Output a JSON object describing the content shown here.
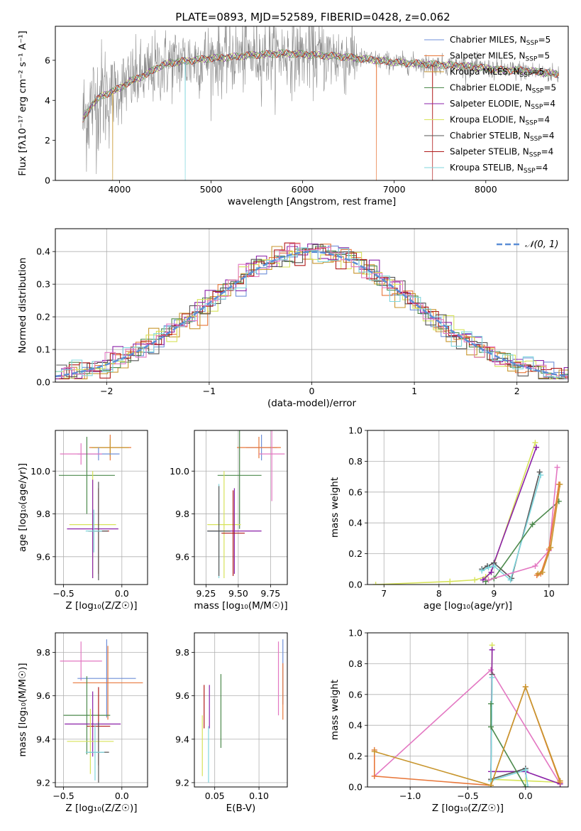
{
  "title": "PLATE=0893, MJD=52589, FIBERID=0428, z=0.062",
  "colors": {
    "Chabrier MILES": "#6f8fd8",
    "Salpeter MILES": "#e8773a",
    "Kroupa MILES": "#c8962e",
    "Chabrier ELODIE": "#4d8a4d",
    "Salpeter ELODIE": "#8b21a8",
    "Kroupa ELODIE": "#d7e35a",
    "Chabrier STELIB": "#555555",
    "Salpeter STELIB": "#b01a1a",
    "Kroupa STELIB": "#7fd6dd",
    "data": "#8c8c8c",
    "gauss": "#5b8ed6",
    "grid": "#b0b0b0",
    "pink": "#e377c2"
  },
  "chart_data": [
    {
      "id": "spectrum",
      "type": "line",
      "xlabel": "wavelength [Angstrom, rest frame]",
      "ylabel": "Flux [fλ10⁻¹⁷ erg cm⁻² s⁻¹ A⁻¹]",
      "xlim": [
        3300,
        8900
      ],
      "ylim": [
        0,
        7.7
      ],
      "xticks": [
        4000,
        5000,
        6000,
        7000,
        8000
      ],
      "yticks": [
        0,
        2,
        4,
        6
      ],
      "grid": false,
      "legend_position": "right",
      "continuum": {
        "x": [
          3600,
          3700,
          3800,
          3900,
          4000,
          4100,
          4200,
          4300,
          4400,
          4500,
          4600,
          4800,
          5000,
          5200,
          5400,
          5600,
          5800,
          6000,
          6200,
          6400,
          6600,
          6800,
          7000,
          7200,
          7400,
          7600,
          7800,
          8000,
          8200,
          8400,
          8600,
          8800
        ],
        "y": [
          3.0,
          3.8,
          4.2,
          4.4,
          4.6,
          4.9,
          5.1,
          5.3,
          5.6,
          5.8,
          5.9,
          6.0,
          6.1,
          6.15,
          6.25,
          6.3,
          6.35,
          6.3,
          6.25,
          6.2,
          6.1,
          6.0,
          5.9,
          5.85,
          5.8,
          5.75,
          5.7,
          5.6,
          5.5,
          5.5,
          5.4,
          5.3
        ]
      },
      "series": [
        {
          "name": "Chabrier MILES",
          "nssp": "5",
          "color_key": "Chabrier MILES"
        },
        {
          "name": "Salpeter MILES",
          "nssp": "5",
          "color_key": "Salpeter MILES"
        },
        {
          "name": "Kroupa MILES",
          "nssp": "5",
          "color_key": "Kroupa MILES"
        },
        {
          "name": "Chabrier ELODIE",
          "nssp": "5",
          "color_key": "Chabrier ELODIE"
        },
        {
          "name": "Salpeter ELODIE",
          "nssp": "4",
          "color_key": "Salpeter ELODIE"
        },
        {
          "name": "Kroupa ELODIE",
          "nssp": "4",
          "color_key": "Kroupa ELODIE"
        },
        {
          "name": "Chabrier STELIB",
          "nssp": "4",
          "color_key": "Chabrier STELIB"
        },
        {
          "name": "Salpeter STELIB",
          "nssp": "4",
          "color_key": "Salpeter STELIB"
        },
        {
          "name": "Kroupa STELIB",
          "nssp": "4",
          "color_key": "Kroupa STELIB"
        }
      ]
    },
    {
      "id": "residuals",
      "type": "line",
      "xlabel": "(data-model)/error",
      "ylabel": "Normed distribution",
      "xlim": [
        -2.5,
        2.5
      ],
      "ylim": [
        0,
        0.47
      ],
      "xticks": [
        -2,
        -1,
        0,
        1,
        2
      ],
      "yticks": [
        0.0,
        0.1,
        0.2,
        0.3,
        0.4
      ],
      "grid": true,
      "legend": "𝒩(0, 1)",
      "legend_position": "top-right",
      "bin_width": 0.1,
      "gaussian": {
        "mu": 0,
        "sigma": 1
      }
    },
    {
      "id": "age-vs-Z",
      "type": "scatter",
      "xlabel": "Z [log₁₀(Z/Z☉)]",
      "ylabel": "age  [log₁₀(age/yr)]",
      "xlim": [
        -0.57,
        0.22
      ],
      "ylim": [
        9.47,
        10.19
      ],
      "xticks": [
        -0.5,
        0.0
      ],
      "yticks": [
        9.6,
        9.8,
        10.0
      ],
      "grid": true,
      "points": [
        {
          "x": -0.1,
          "y": 10.11,
          "xe": 0.18,
          "ye": 0.06,
          "c": "Salpeter MILES"
        },
        {
          "x": -0.1,
          "y": 10.11,
          "xe": 0.16,
          "ye": 0.04,
          "c": "Kroupa MILES"
        },
        {
          "x": -0.2,
          "y": 10.08,
          "xe": 0.18,
          "ye": 0.03,
          "c": "Chabrier MILES"
        },
        {
          "x": -0.35,
          "y": 10.08,
          "xe": 0.18,
          "ye": 0.05,
          "c": "pink"
        },
        {
          "x": -0.3,
          "y": 9.98,
          "xe": 0.24,
          "ye": 0.18,
          "c": "Chabrier ELODIE"
        },
        {
          "x": -0.25,
          "y": 9.75,
          "xe": 0.2,
          "ye": 0.25,
          "c": "Kroupa ELODIE"
        },
        {
          "x": -0.25,
          "y": 9.73,
          "xe": 0.22,
          "ye": 0.23,
          "c": "Salpeter ELODIE"
        },
        {
          "x": -0.2,
          "y": 9.72,
          "xe": 0.09,
          "ye": 0.2,
          "c": "Salpeter STELIB"
        },
        {
          "x": -0.2,
          "y": 9.72,
          "xe": 0.08,
          "ye": 0.23,
          "c": "Chabrier STELIB"
        },
        {
          "x": -0.24,
          "y": 9.72,
          "xe": 0.07,
          "ye": 0.1,
          "c": "Kroupa STELIB"
        }
      ]
    },
    {
      "id": "age-vs-mass",
      "type": "scatter",
      "xlabel": "mass [log₁₀(M/M☉)]",
      "ylabel": "",
      "xlim": [
        9.16,
        9.88
      ],
      "ylim": [
        9.47,
        10.19
      ],
      "xticks": [
        9.25,
        9.5,
        9.75
      ],
      "yticks": [
        9.6,
        9.8,
        10.0
      ],
      "grid": true,
      "points": [
        {
          "x": 9.68,
          "y": 10.11,
          "xe": 0.12,
          "ye": 0.06,
          "c": "Chabrier MILES"
        },
        {
          "x": 9.66,
          "y": 10.11,
          "xe": 0.17,
          "ye": 0.05,
          "c": "Salpeter MILES"
        },
        {
          "x": 9.76,
          "y": 10.08,
          "xe": 0.1,
          "ye": 0.22,
          "c": "pink"
        },
        {
          "x": 9.51,
          "y": 9.98,
          "xe": 0.17,
          "ye": 0.25,
          "c": "Chabrier ELODIE"
        },
        {
          "x": 9.39,
          "y": 9.75,
          "xe": 0.13,
          "ye": 0.25,
          "c": "Kroupa ELODIE"
        },
        {
          "x": 9.47,
          "y": 9.72,
          "xe": 0.21,
          "ye": 0.2,
          "c": "Salpeter ELODIE"
        },
        {
          "x": 9.46,
          "y": 9.71,
          "xe": 0.09,
          "ye": 0.2,
          "c": "Salpeter STELIB"
        },
        {
          "x": 9.35,
          "y": 9.72,
          "xe": 0.09,
          "ye": 0.22,
          "c": "Kroupa STELIB"
        },
        {
          "x": 9.35,
          "y": 9.72,
          "xe": 0.09,
          "ye": 0.21,
          "c": "Chabrier STELIB"
        }
      ]
    },
    {
      "id": "weight-vs-age",
      "type": "line",
      "xlabel": "age  [log₁₀(age/yr)]",
      "ylabel": "mass weight",
      "xlim": [
        6.7,
        10.35
      ],
      "ylim": [
        0,
        1.0
      ],
      "xticks": [
        7,
        8,
        9,
        10
      ],
      "yticks": [
        0.0,
        0.2,
        0.4,
        0.6,
        0.8,
        1.0
      ],
      "grid": true,
      "series": [
        {
          "c": "Kroupa ELODIE",
          "x": [
            6.85,
            8.2,
            8.65,
            8.85,
            8.95,
            9.75
          ],
          "y": [
            0.0,
            0.02,
            0.03,
            0.05,
            0.08,
            0.92
          ]
        },
        {
          "c": "Salpeter ELODIE",
          "x": [
            8.8,
            8.95,
            9.0,
            9.77
          ],
          "y": [
            0.03,
            0.08,
            0.14,
            0.89
          ]
        },
        {
          "c": "Chabrier STELIB",
          "x": [
            8.78,
            8.88,
            9.0,
            9.32,
            9.83
          ],
          "y": [
            0.1,
            0.12,
            0.14,
            0.04,
            0.73
          ]
        },
        {
          "c": "Kroupa STELIB",
          "x": [
            8.78,
            8.9,
            9.0,
            9.3,
            9.85
          ],
          "y": [
            0.09,
            0.11,
            0.12,
            0.03,
            0.71
          ]
        },
        {
          "c": "Chabrier ELODIE",
          "x": [
            8.85,
            9.0,
            9.7,
            10.18
          ],
          "y": [
            0.02,
            0.04,
            0.39,
            0.54
          ]
        },
        {
          "c": "pink",
          "x": [
            8.9,
            9.75,
            10.0,
            10.15
          ],
          "y": [
            0.03,
            0.12,
            0.22,
            0.76
          ]
        },
        {
          "c": "Salpeter MILES",
          "x": [
            9.78,
            9.85,
            10.0,
            10.18
          ],
          "y": [
            0.06,
            0.07,
            0.23,
            0.65
          ]
        },
        {
          "c": "Kroupa MILES",
          "x": [
            9.8,
            9.88,
            10.03,
            10.2
          ],
          "y": [
            0.07,
            0.08,
            0.24,
            0.65
          ]
        }
      ]
    },
    {
      "id": "mass-vs-Z",
      "type": "scatter",
      "xlabel": "Z [log₁₀(Z/Z☉)]",
      "ylabel": "mass [log₁₀(M/M☉)]",
      "xlim": [
        -0.57,
        0.22
      ],
      "ylim": [
        9.18,
        9.89
      ],
      "xticks": [
        -0.5,
        0.0
      ],
      "yticks": [
        9.2,
        9.4,
        9.6,
        9.8
      ],
      "grid": true,
      "points": [
        {
          "x": -0.35,
          "y": 9.76,
          "xe": 0.18,
          "ye": 0.09,
          "c": "pink"
        },
        {
          "x": -0.13,
          "y": 9.68,
          "xe": 0.25,
          "ye": 0.18,
          "c": "Chabrier MILES"
        },
        {
          "x": -0.12,
          "y": 9.66,
          "xe": 0.3,
          "ye": 0.17,
          "c": "Salpeter MILES"
        },
        {
          "x": -0.3,
          "y": 9.51,
          "xe": 0.2,
          "ye": 0.18,
          "c": "Chabrier ELODIE"
        },
        {
          "x": -0.25,
          "y": 9.47,
          "xe": 0.24,
          "ye": 0.15,
          "c": "Salpeter ELODIE"
        },
        {
          "x": -0.2,
          "y": 9.46,
          "xe": 0.1,
          "ye": 0.18,
          "c": "Salpeter STELIB"
        },
        {
          "x": -0.27,
          "y": 9.39,
          "xe": 0.2,
          "ye": 0.15,
          "c": "Kroupa ELODIE"
        },
        {
          "x": -0.2,
          "y": 9.34,
          "xe": 0.09,
          "ye": 0.14,
          "c": "Chabrier STELIB"
        },
        {
          "x": -0.23,
          "y": 9.34,
          "xe": 0.08,
          "ye": 0.13,
          "c": "Kroupa STELIB"
        }
      ]
    },
    {
      "id": "mass-vs-ebv",
      "type": "scatter",
      "xlabel": "E(B-V)",
      "ylabel": "",
      "xlim": [
        0.027,
        0.132
      ],
      "ylim": [
        9.18,
        9.89
      ],
      "xticks": [
        0.05,
        0.1
      ],
      "yticks": [
        9.2,
        9.4,
        9.6,
        9.8
      ],
      "grid": true,
      "points": [
        {
          "x": 0.127,
          "y": 9.71,
          "xe": 0.0,
          "ye": 0.15,
          "c": "Chabrier MILES"
        },
        {
          "x": 0.127,
          "y": 9.62,
          "xe": 0.0,
          "ye": 0.13,
          "c": "Salpeter MILES"
        },
        {
          "x": 0.122,
          "y": 9.68,
          "xe": 0.0,
          "ye": 0.17,
          "c": "pink"
        },
        {
          "x": 0.057,
          "y": 9.53,
          "xe": 0.0,
          "ye": 0.17,
          "c": "Chabrier ELODIE"
        },
        {
          "x": 0.044,
          "y": 9.55,
          "xe": 0.0,
          "ye": 0.1,
          "c": "Salpeter ELODIE"
        },
        {
          "x": 0.038,
          "y": 9.55,
          "xe": 0.0,
          "ye": 0.1,
          "c": "Salpeter STELIB"
        },
        {
          "x": 0.036,
          "y": 9.37,
          "xe": 0.0,
          "ye": 0.14,
          "c": "Kroupa ELODIE"
        },
        {
          "x": 0.043,
          "y": 9.33,
          "xe": 0.0,
          "ye": 0.13,
          "c": "Kroupa STELIB"
        }
      ]
    },
    {
      "id": "weight-vs-Z",
      "type": "line",
      "xlabel": "Z [log₁₀(Z/Z☉)]",
      "ylabel": "mass weight",
      "xlim": [
        -1.37,
        0.37
      ],
      "ylim": [
        0,
        1.0
      ],
      "xticks": [
        -1.0,
        -0.5,
        0.0
      ],
      "yticks": [
        0.0,
        0.2,
        0.4,
        0.6,
        0.8,
        1.0
      ],
      "grid": true,
      "series": [
        {
          "c": "pink",
          "x": [
            -1.31,
            -0.3,
            0.3
          ],
          "y": [
            0.07,
            0.76,
            0.02
          ]
        },
        {
          "c": "Kroupa ELODIE",
          "x": [
            -0.29,
            -0.3,
            0.0,
            0.3
          ],
          "y": [
            0.92,
            0.05,
            0.04,
            0.03
          ]
        },
        {
          "c": "Salpeter ELODIE",
          "x": [
            -0.29,
            -0.3,
            0.0,
            0.3
          ],
          "y": [
            0.89,
            0.1,
            0.1,
            0.02
          ]
        },
        {
          "c": "Chabrier STELIB",
          "x": [
            -0.29,
            -0.3,
            0.0
          ],
          "y": [
            0.73,
            0.05,
            0.12
          ]
        },
        {
          "c": "Kroupa STELIB",
          "x": [
            -0.29,
            -0.3,
            0.0,
            0.02
          ],
          "y": [
            0.71,
            0.04,
            0.11,
            0.0
          ]
        },
        {
          "c": "Chabrier ELODIE",
          "x": [
            -0.3,
            -0.3,
            0.0
          ],
          "y": [
            0.54,
            0.39,
            0.0
          ]
        },
        {
          "c": "Salpeter MILES",
          "x": [
            -1.31,
            -1.31,
            -0.3,
            0.0,
            0.3
          ],
          "y": [
            0.24,
            0.07,
            0.01,
            0.65,
            0.03
          ]
        },
        {
          "c": "Kroupa MILES",
          "x": [
            -1.31,
            -0.3,
            0.0,
            0.3
          ],
          "y": [
            0.23,
            0.01,
            0.65,
            0.04
          ]
        }
      ]
    }
  ]
}
